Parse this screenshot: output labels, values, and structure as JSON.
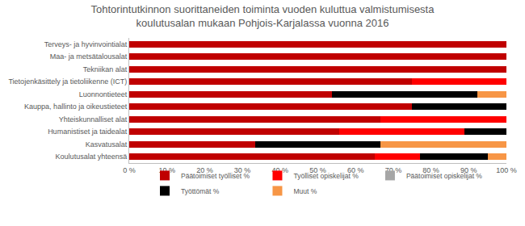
{
  "chart_data": {
    "type": "bar",
    "orientation": "horizontal",
    "stacked": true,
    "title": "Tohtorintutkinnon suorittaneiden toiminta vuoden kuluttua valmistumisesta\nkoulutusalan mukaan Pohjois-Karjalassa vuonna 2016",
    "categories": [
      "Terveys- ja hyvinvointialat",
      "Maa- ja metsätalousalat",
      "Tekniikan alat",
      "Tietojenkäsittely ja tietoliikenne (ICT)",
      "Luonnontieteet",
      "Kauppa, hallinto ja oikeustieteet",
      "Yhteiskunnalliset alat",
      "Humanistiset ja taidealat",
      "Kasvatusalat",
      "Koulutusalat yhteensä"
    ],
    "series": [
      {
        "name": "Päätoimiset työlliset %",
        "color": "#c00000",
        "values": [
          100,
          100,
          100,
          75,
          53.8,
          75,
          66.7,
          55.6,
          33.3,
          65
        ]
      },
      {
        "name": "Työlliset opiskelijat %",
        "color": "#ff0000",
        "values": [
          0,
          0,
          0,
          25,
          0,
          0,
          33.3,
          33.3,
          0,
          12
        ]
      },
      {
        "name": "Päätoimiset opiskelijat %",
        "color": "#a6a6a6",
        "values": [
          0,
          0,
          0,
          0,
          0,
          0,
          0,
          0,
          0,
          0
        ]
      },
      {
        "name": "Työttömät %",
        "color": "#000000",
        "values": [
          0,
          0,
          0,
          0,
          38.5,
          25,
          0,
          11.1,
          33.3,
          18
        ]
      },
      {
        "name": "Muut %",
        "color": "#f79646",
        "values": [
          0,
          0,
          0,
          0,
          7.7,
          0,
          0,
          0,
          33.4,
          5
        ]
      }
    ],
    "xlim": [
      0,
      100
    ],
    "xticks": [
      {
        "value": 0,
        "label": "0 %"
      },
      {
        "value": 10,
        "label": "10 %"
      },
      {
        "value": 20,
        "label": "20 %"
      },
      {
        "value": 30,
        "label": "30 %"
      },
      {
        "value": 40,
        "label": "40 %"
      },
      {
        "value": 50,
        "label": "50 %"
      },
      {
        "value": 60,
        "label": "60 %"
      },
      {
        "value": 70,
        "label": "70 %"
      },
      {
        "value": 80,
        "label": "80 %"
      },
      {
        "value": 90,
        "label": "90 %"
      },
      {
        "value": 100,
        "label": "100 %"
      }
    ],
    "grid": false,
    "legend": "bottom"
  }
}
